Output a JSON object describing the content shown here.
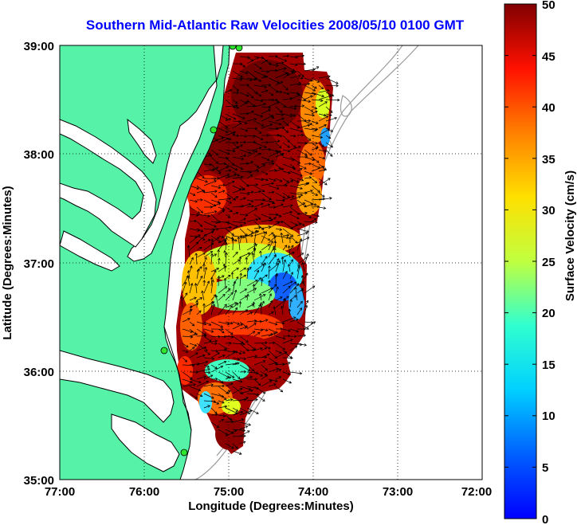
{
  "title": "Southern Mid-Atlantic Raw Velocities 2008/05/10 0100 GMT",
  "x_axis": {
    "label": "Longitude (Degrees:Minutes)",
    "ticks": [
      "77:00",
      "76:00",
      "75:00",
      "74:00",
      "73:00",
      "72:00"
    ]
  },
  "y_axis": {
    "label": "Latitude (Degrees:Minutes)",
    "ticks": [
      "39:00",
      "38:00",
      "37:00",
      "36:00",
      "35:00"
    ]
  },
  "colorbar": {
    "label": "Surface Velocity (cm/s)",
    "ticks": [
      "50",
      "45",
      "40",
      "35",
      "30",
      "25",
      "20",
      "15",
      "10",
      "5",
      "0"
    ],
    "min": 0,
    "max": 50,
    "colormap": "jet"
  },
  "colors": {
    "land": "#55f2a8",
    "coastline": "#000000",
    "bathymetry": "#9a9a9a",
    "grid": "#000000",
    "title": "#0000ff",
    "stations": "#2ee62e"
  },
  "map_extent": {
    "lon": [
      -77,
      -72
    ],
    "lat": [
      35,
      39
    ]
  },
  "grid": "dotted"
}
